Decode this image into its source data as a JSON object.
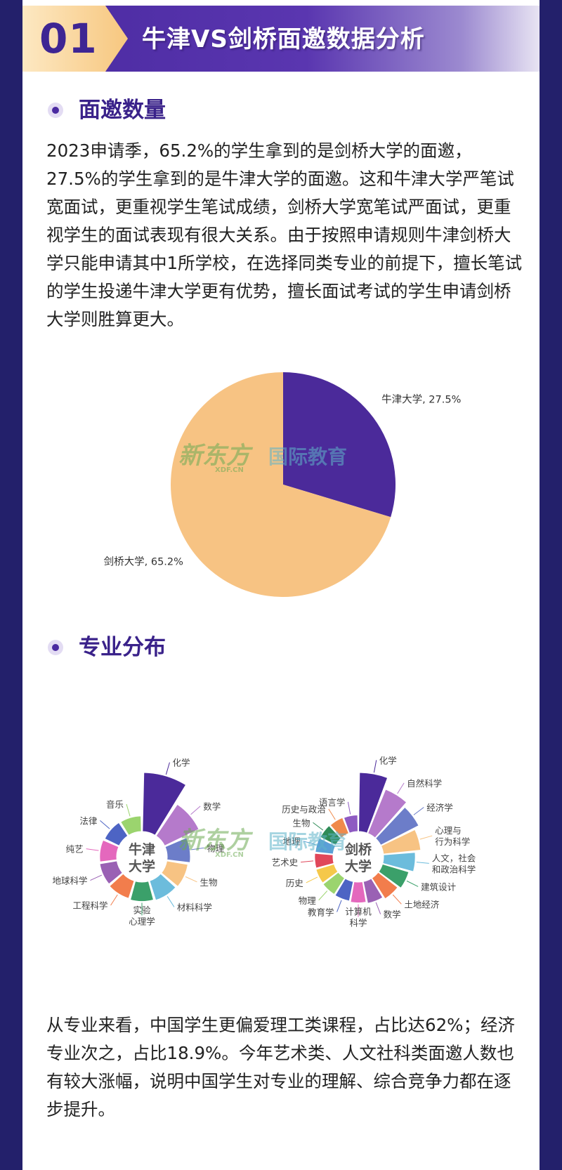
{
  "banner": {
    "number": "01",
    "title": "牛津VS剑桥面邀数据分析"
  },
  "section1": {
    "title": "面邀数量",
    "paragraph": "2023申请季，65.2%的学生拿到的是剑桥大学的面邀，27.5%的学生拿到的是牛津大学的面邀。这和牛津大学严笔试宽面试，更重视学生笔试成绩，剑桥大学宽笔试严面试，更重视学生的面试表现有很大关系。由于按照申请规则牛津剑桥大学只能申请其中1所学校，在选择同类专业的前提下，擅长笔试的学生投递牛津大学更有优势，擅长面试考试的学生申请剑桥大学则胜算更大。"
  },
  "section2": {
    "title": "专业分布",
    "paragraph": "从专业来看，中国学生更偏爱理工类课程，占比达62%；经济专业次之，占比18.9%。今年艺术类、人文社科类面邀人数也有较大涨幅，说明中国学生对专业的理解、综合竞争力都在逐步提升。"
  },
  "watermark": {
    "brand": "新东方",
    "domain": "XDF.CN",
    "sub": "国际教育"
  },
  "colors": {
    "purple": "#4b2a9a",
    "peach": "#f7c383",
    "accent": "#3a228a"
  },
  "chart_data": [
    {
      "type": "pie",
      "slices": [
        {
          "label": "牛津大学, 27.5%",
          "value": 27.5,
          "color": "#4b2a9a"
        },
        {
          "label": "剑桥大学, 65.2%",
          "value": 65.2,
          "color": "#f7c383"
        }
      ]
    },
    {
      "type": "rose",
      "center_label": [
        "牛津",
        "大学"
      ],
      "categories": [
        {
          "label": [
            "化学"
          ],
          "value": 100,
          "color": "#4b2a9a"
        },
        {
          "label": [
            "数学"
          ],
          "value": 56,
          "color": "#b57acb"
        },
        {
          "label": [
            "物理"
          ],
          "value": 25,
          "color": "#6c7dc9"
        },
        {
          "label": [
            "生物"
          ],
          "value": 21,
          "color": "#f7c383"
        },
        {
          "label": [
            "材料科学"
          ],
          "value": 19,
          "color": "#6cbcdc"
        },
        {
          "label": [
            "实验",
            "心理学"
          ],
          "value": 17,
          "color": "#3ba06a"
        },
        {
          "label": [
            "工程科学"
          ],
          "value": 15,
          "color": "#f27d4c"
        },
        {
          "label": [
            "地球科学"
          ],
          "value": 13,
          "color": "#9a61b4"
        },
        {
          "label": [
            "纯艺"
          ],
          "value": 12,
          "color": "#e468bd"
        },
        {
          "label": [
            "法律"
          ],
          "value": 10,
          "color": "#4d64c4"
        },
        {
          "label": [
            "音乐"
          ],
          "value": 9,
          "color": "#9bd46e"
        }
      ]
    },
    {
      "type": "rose",
      "center_label": [
        "剑桥",
        "大学"
      ],
      "categories": [
        {
          "label": [
            "化学"
          ],
          "value": 100,
          "color": "#4b2a9a"
        },
        {
          "label": [
            "自然科学"
          ],
          "value": 76,
          "color": "#b57acb"
        },
        {
          "label": [
            "经济学"
          ],
          "value": 66,
          "color": "#6c7dc9"
        },
        {
          "label": [
            "心理与",
            "行为科学"
          ],
          "value": 55,
          "color": "#f7c383"
        },
        {
          "label": [
            "人文，社会",
            "和政治科学"
          ],
          "value": 43,
          "color": "#6cbcdc"
        },
        {
          "label": [
            "建筑设计"
          ],
          "value": 34,
          "color": "#3ba06a"
        },
        {
          "label": [
            "土地经济"
          ],
          "value": 28,
          "color": "#f27d4c"
        },
        {
          "label": [
            "数学"
          ],
          "value": 23,
          "color": "#9a61b4"
        },
        {
          "label": [
            "计算机",
            "科学"
          ],
          "value": 20,
          "color": "#e468bd"
        },
        {
          "label": [
            "教育学"
          ],
          "value": 18,
          "color": "#4d64c4"
        },
        {
          "label": [
            "物理"
          ],
          "value": 17,
          "color": "#9bd46e"
        },
        {
          "label": [
            "历史"
          ],
          "value": 16,
          "color": "#f5c84a"
        },
        {
          "label": [
            "艺术史"
          ],
          "value": 15,
          "color": "#e0475a"
        },
        {
          "label": [
            "地理"
          ],
          "value": 14,
          "color": "#5a9fd6"
        },
        {
          "label": [
            "生物"
          ],
          "value": 13,
          "color": "#2e8b57"
        },
        {
          "label": [
            "历史与政治"
          ],
          "value": 12,
          "color": "#f08a4b"
        },
        {
          "label": [
            "语言学"
          ],
          "value": 11,
          "color": "#8e5ac2"
        }
      ]
    }
  ]
}
